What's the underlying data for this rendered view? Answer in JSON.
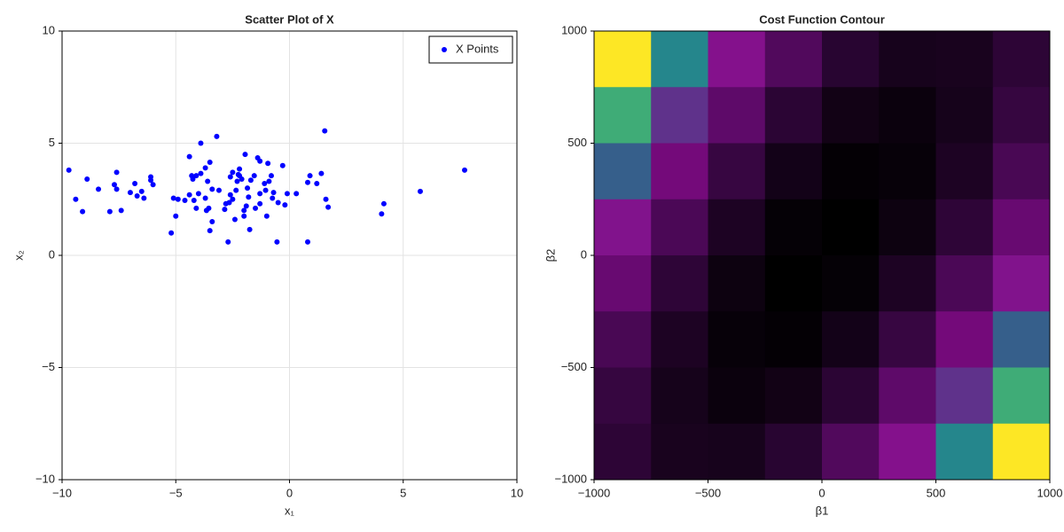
{
  "chart_data": [
    {
      "type": "scatter",
      "title": "Scatter Plot of X",
      "x_label": "x₁",
      "y_label": "x₂",
      "xlim": [
        -10,
        10
      ],
      "ylim": [
        -10,
        10
      ],
      "xticks": [
        {
          "value": -10,
          "label": "−10"
        },
        {
          "value": -5,
          "label": "−5"
        },
        0,
        5,
        10
      ],
      "yticks": [
        {
          "value": -10,
          "label": "−10"
        },
        {
          "value": -5,
          "label": "−5"
        },
        0,
        5,
        10
      ],
      "grid": true,
      "legend": "top-right",
      "series": [
        {
          "name": "X Points",
          "color": "#0000ff",
          "x": [
            -9.7,
            -9.4,
            -9.1,
            -8.9,
            -8.4,
            -7.9,
            -7.7,
            -7.6,
            -7.6,
            -7.4,
            -7.0,
            -6.8,
            -6.7,
            -6.5,
            -6.4,
            -6.1,
            -6.1,
            -6.0,
            -5.2,
            -5.1,
            -5.0,
            -4.9,
            -4.6,
            -4.4,
            -4.4,
            -4.3,
            -4.25,
            -4.2,
            -4.1,
            -4.1,
            -4.0,
            -3.9,
            -3.9,
            -3.7,
            -3.7,
            -3.65,
            -3.6,
            -3.55,
            -3.5,
            -3.5,
            -3.4,
            -3.4,
            -3.2,
            -3.1,
            -2.85,
            -2.8,
            -2.7,
            -2.65,
            -2.6,
            -2.6,
            -2.5,
            -2.5,
            -2.4,
            -2.35,
            -2.3,
            -2.25,
            -2.2,
            -2.2,
            -2.1,
            -2.0,
            -2.0,
            -1.95,
            -1.9,
            -1.85,
            -1.8,
            -1.75,
            -1.7,
            -1.55,
            -1.5,
            -1.4,
            -1.3,
            -1.3,
            -1.3,
            -1.1,
            -1.05,
            -1.0,
            -0.95,
            -0.9,
            -0.8,
            -0.75,
            -0.7,
            -0.55,
            -0.5,
            -0.3,
            -0.2,
            -0.1,
            0.3,
            0.8,
            0.8,
            0.9,
            1.2,
            1.4,
            1.55,
            1.6,
            1.7,
            4.05,
            4.15,
            5.75,
            7.7
          ],
          "y": [
            3.8,
            2.5,
            1.95,
            3.4,
            2.95,
            1.95,
            3.15,
            3.7,
            2.95,
            2.0,
            2.8,
            3.2,
            2.65,
            2.85,
            2.55,
            3.5,
            3.35,
            3.15,
            1.0,
            2.55,
            1.75,
            2.5,
            2.45,
            2.7,
            4.4,
            3.55,
            3.4,
            2.45,
            2.1,
            3.55,
            2.75,
            3.65,
            5.0,
            2.55,
            3.9,
            2.0,
            3.3,
            2.1,
            4.15,
            1.1,
            1.5,
            2.95,
            5.3,
            2.9,
            2.05,
            2.3,
            0.6,
            2.35,
            3.5,
            2.7,
            2.5,
            3.7,
            1.6,
            2.9,
            3.3,
            3.6,
            3.55,
            3.85,
            3.4,
            1.75,
            2.0,
            4.5,
            2.2,
            3.0,
            2.6,
            1.15,
            3.35,
            3.55,
            2.1,
            4.35,
            4.2,
            2.75,
            2.3,
            3.2,
            2.9,
            1.75,
            4.1,
            3.3,
            3.55,
            2.55,
            2.8,
            0.6,
            2.35,
            4.0,
            2.25,
            2.75,
            2.75,
            0.6,
            3.25,
            3.55,
            3.2,
            3.65,
            5.55,
            2.5,
            2.15,
            1.85,
            2.3,
            2.85,
            3.8
          ]
        }
      ]
    },
    {
      "type": "contour",
      "title": "Cost Function Contour",
      "x_label": "β1",
      "y_label": "β2",
      "xlim": [
        -1000,
        1000
      ],
      "ylim": [
        -1000,
        1000
      ],
      "xticks": [
        {
          "value": -1000,
          "label": "−1000"
        },
        {
          "value": -500,
          "label": "−500"
        },
        0,
        500,
        1000
      ],
      "yticks": [
        {
          "value": -1000,
          "label": "−1000"
        },
        {
          "value": -500,
          "label": "−500"
        },
        0,
        500,
        1000
      ],
      "grid": false,
      "colormap": [
        "#000000",
        "#2a0533",
        "#5a0a66",
        "#8c0a8c",
        "#3b528b",
        "#21918c",
        "#5ec962",
        "#fde725"
      ],
      "x": [
        -875,
        -625,
        -375,
        -125,
        125,
        375,
        625,
        875
      ],
      "y": [
        875,
        625,
        375,
        125,
        -125,
        -375,
        -625,
        -875
      ],
      "z": [
        [
          127.4,
          88,
          56.6,
          33.2,
          17.8,
          10.4,
          11,
          19.6
        ],
        [
          100,
          65,
          38,
          19,
          8,
          5,
          10,
          23
        ],
        [
          76.6,
          46,
          23.4,
          8.8,
          2.2,
          3.6,
          13,
          30.4
        ],
        [
          57.2,
          31,
          12.8,
          2.6,
          0.4,
          6.2,
          20,
          41.8
        ],
        [
          41.8,
          20,
          6.2,
          0.4,
          2.6,
          12.8,
          31,
          57.2
        ],
        [
          30.4,
          13,
          3.6,
          2.2,
          8.8,
          23.4,
          46,
          76.6
        ],
        [
          23,
          10,
          5,
          8,
          19,
          38,
          65,
          100
        ],
        [
          19.6,
          11,
          10.4,
          17.8,
          33.2,
          56.6,
          88,
          127.4
        ]
      ]
    }
  ]
}
